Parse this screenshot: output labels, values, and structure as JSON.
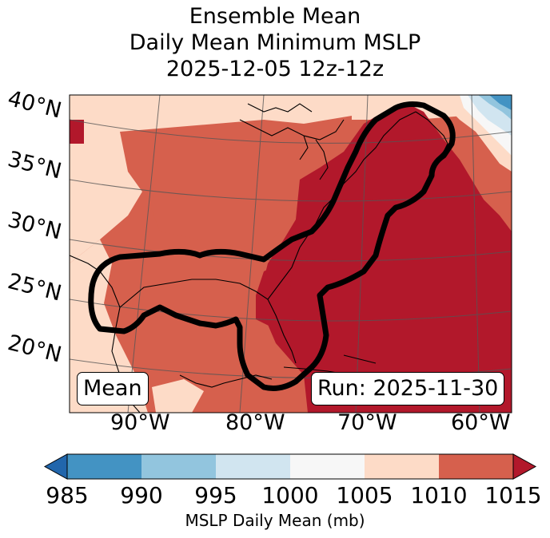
{
  "title": {
    "line1": "Ensemble Mean",
    "line2": "Daily Mean Minimum MSLP",
    "line3": "2025-12-05 12z-12z"
  },
  "map": {
    "lat_labels": [
      "40°N",
      "35°N",
      "30°N",
      "25°N",
      "20°N"
    ],
    "lon_labels": [
      "90°W",
      "80°W",
      "70°W",
      "60°W"
    ],
    "mean_box": "Mean",
    "run_box": "Run: 2025-11-30",
    "contour_color": "#000000"
  },
  "colorbar": {
    "title": "MSLP Daily Mean (mb)",
    "ticks": [
      "985",
      "990",
      "995",
      "1000",
      "1005",
      "1010",
      "1015"
    ],
    "colors": [
      "#2166ac",
      "#4393c3",
      "#92c5de",
      "#d1e5f0",
      "#f7f7f7",
      "#fddbc7",
      "#d6604d",
      "#b2182b"
    ],
    "extend": "both"
  },
  "palette": {
    "ocean_deep": "#b2182b",
    "mid": "#d6604d",
    "light": "#fddbc7",
    "white": "#f7f7f7",
    "blue_light": "#d1e5f0",
    "blue_mid": "#92c5de",
    "blue_dark": "#4393c3"
  }
}
